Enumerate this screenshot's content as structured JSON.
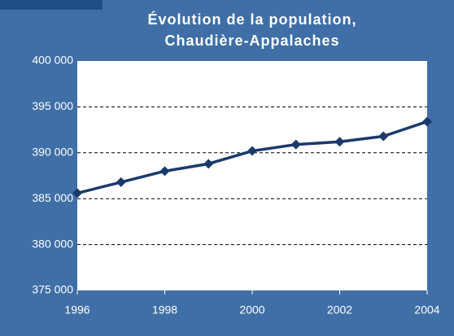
{
  "chart_data": {
    "type": "line",
    "title_lines": [
      "Évolution de la population,",
      "Chaudière-Appalaches"
    ],
    "x": [
      1996,
      1997,
      1998,
      1999,
      2000,
      2001,
      2002,
      2003,
      2004
    ],
    "series": [
      {
        "name": "Population",
        "color": "#1b3a6b",
        "values": [
          385600,
          386800,
          388000,
          388800,
          390200,
          390900,
          391200,
          391800,
          393400
        ]
      }
    ],
    "xlim": [
      1996,
      2004
    ],
    "xticks": [
      1996,
      1998,
      2000,
      2002,
      2004
    ],
    "ylim": [
      375000,
      400000
    ],
    "yticks": [
      {
        "value": 375000,
        "label": "375 000"
      },
      {
        "value": 380000,
        "label": "380 000"
      },
      {
        "value": 385000,
        "label": "385 000"
      },
      {
        "value": 390000,
        "label": "390 000"
      },
      {
        "value": 395000,
        "label": "395 000"
      },
      {
        "value": 400000,
        "label": "400 000"
      }
    ],
    "grid": true
  }
}
